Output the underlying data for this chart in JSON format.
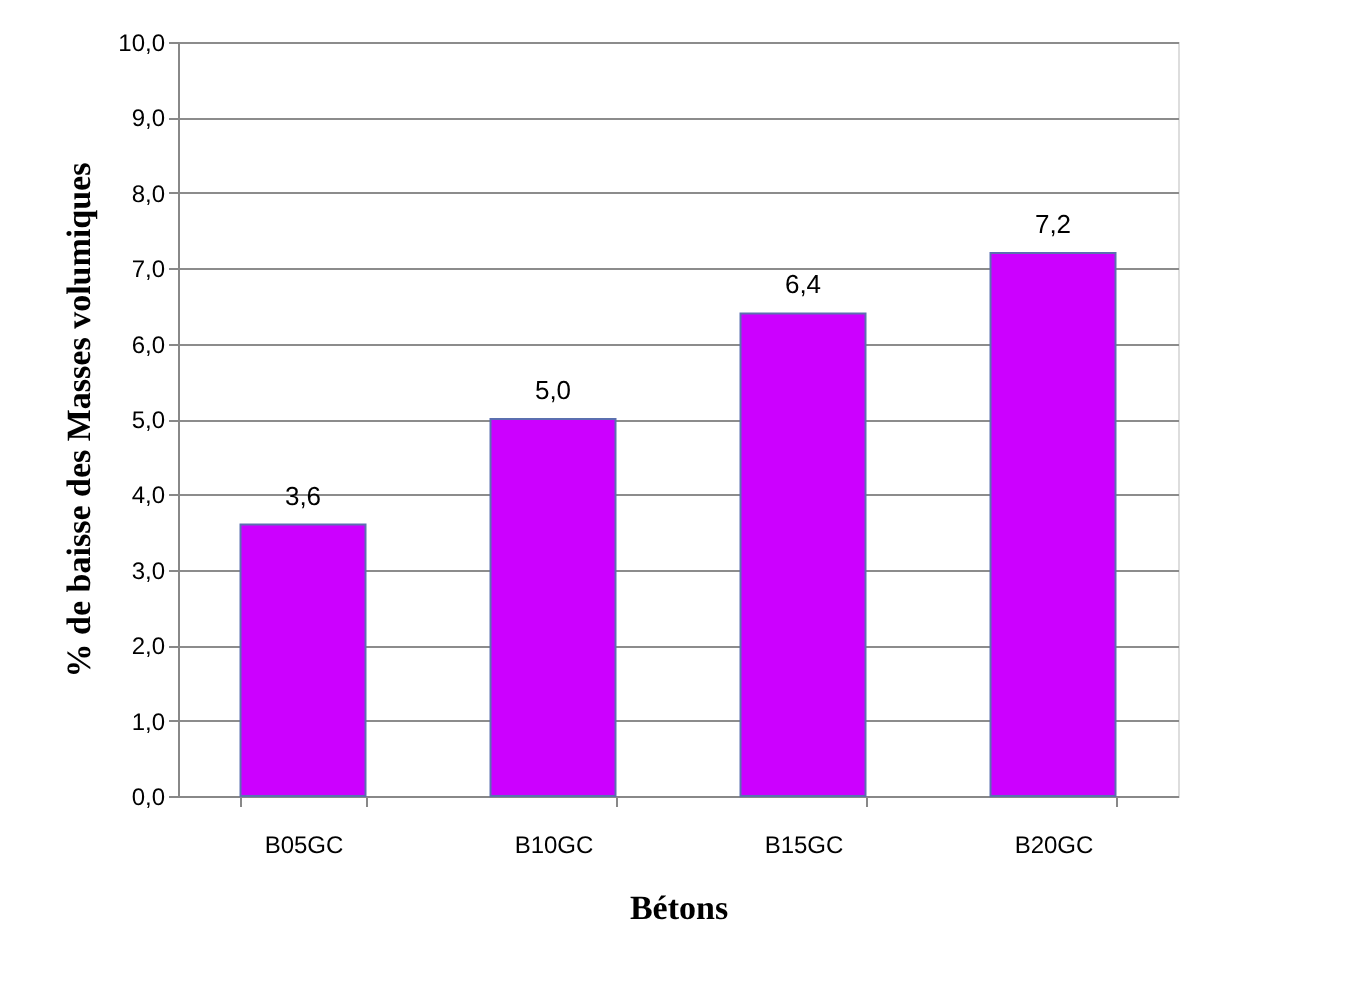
{
  "chart_data": {
    "type": "bar",
    "xlabel": "Bétons",
    "ylabel": "% de baisse des Masses volumiques",
    "categories": [
      "B05GC",
      "B10GC",
      "B15GC",
      "B20GC"
    ],
    "values": [
      3.6,
      5.0,
      6.4,
      7.2
    ],
    "color": "#cc00ff",
    "value_labels": [
      "3,6",
      "5,0",
      "6,4",
      "7,2"
    ],
    "ylim": [
      0,
      10
    ],
    "yticks": [
      {
        "value": 0,
        "label": "0,0"
      },
      {
        "value": 1,
        "label": "1,0"
      },
      {
        "value": 2,
        "label": "2,0"
      },
      {
        "value": 3,
        "label": "3,0"
      },
      {
        "value": 4,
        "label": "4,0"
      },
      {
        "value": 5,
        "label": "5,0"
      },
      {
        "value": 6,
        "label": "6,0"
      },
      {
        "value": 7,
        "label": "7,0"
      },
      {
        "value": 8,
        "label": "8,0"
      },
      {
        "value": 9,
        "label": "9,0"
      },
      {
        "value": 10,
        "label": "10,0"
      }
    ],
    "grid": "y"
  }
}
